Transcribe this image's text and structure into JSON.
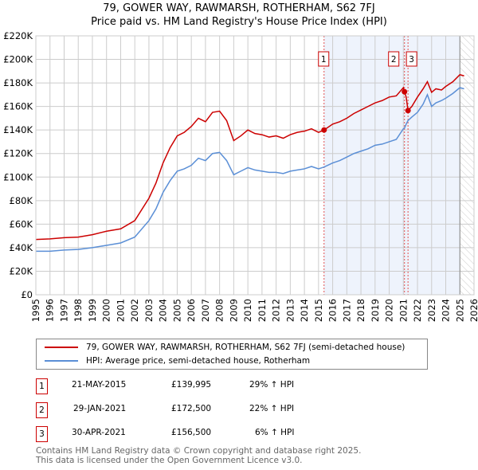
{
  "chart_data": {
    "type": "line",
    "title": "79, GOWER WAY, RAWMARSH, ROTHERHAM, S62 7FJ",
    "subtitle": "Price paid vs. HM Land Registry's House Price Index (HPI)",
    "xlim": [
      1995,
      2026
    ],
    "ylim": [
      0,
      220000
    ],
    "x_ticks": [
      "1995",
      "1996",
      "1997",
      "1998",
      "1999",
      "2000",
      "2001",
      "2002",
      "2003",
      "2004",
      "2005",
      "2006",
      "2007",
      "2008",
      "2009",
      "2010",
      "2011",
      "2012",
      "2013",
      "2014",
      "2015",
      "2016",
      "2017",
      "2018",
      "2019",
      "2020",
      "2021",
      "2022",
      "2023",
      "2024",
      "2025",
      "2026"
    ],
    "y_ticks": [
      {
        "v": 0,
        "label": "£0"
      },
      {
        "v": 20000,
        "label": "£20K"
      },
      {
        "v": 40000,
        "label": "£40K"
      },
      {
        "v": 60000,
        "label": "£60K"
      },
      {
        "v": 80000,
        "label": "£80K"
      },
      {
        "v": 100000,
        "label": "£100K"
      },
      {
        "v": 120000,
        "label": "£120K"
      },
      {
        "v": 140000,
        "label": "£140K"
      },
      {
        "v": 160000,
        "label": "£160K"
      },
      {
        "v": 180000,
        "label": "£180K"
      },
      {
        "v": 200000,
        "label": "£200K"
      },
      {
        "v": 220000,
        "label": "£220K"
      }
    ],
    "grid": true,
    "shaded_from": 2015.39,
    "hatched_from": 2025.0,
    "series": [
      {
        "name": "79, GOWER WAY, RAWMARSH, ROTHERHAM, S62 7FJ (semi-detached house)",
        "color": "#cc0000",
        "x": [
          1995,
          1996,
          1997,
          1998,
          1999,
          2000,
          2001,
          2002,
          2003,
          2003.5,
          2004,
          2004.5,
          2005,
          2005.5,
          2006,
          2006.5,
          2007,
          2007.5,
          2008,
          2008.5,
          2009,
          2009.5,
          2010,
          2010.5,
          2011,
          2011.5,
          2012,
          2012.5,
          2013,
          2013.5,
          2014,
          2014.5,
          2015,
          2015.39,
          2016,
          2016.5,
          2017,
          2017.5,
          2018,
          2018.5,
          2019,
          2019.5,
          2020,
          2020.5,
          2021.0,
          2021.08,
          2021.2,
          2021.33,
          2021.6,
          2022,
          2022.4,
          2022.7,
          2023,
          2023.3,
          2023.7,
          2024,
          2024.5,
          2025,
          2025.3
        ],
        "y": [
          47000,
          47500,
          48500,
          49000,
          51000,
          54000,
          56000,
          63000,
          82000,
          95000,
          112000,
          125000,
          135000,
          138000,
          143000,
          150000,
          147000,
          155000,
          156000,
          148000,
          131000,
          135000,
          140000,
          137000,
          136000,
          134000,
          135000,
          133000,
          136000,
          138000,
          139000,
          141000,
          138000,
          139995,
          145000,
          147000,
          150000,
          154000,
          157000,
          160000,
          163000,
          165000,
          168000,
          169000,
          176000,
          172500,
          168000,
          156500,
          160000,
          168000,
          175000,
          181000,
          172000,
          175000,
          174000,
          177000,
          181000,
          187000,
          186000
        ]
      },
      {
        "name": "HPI: Average price, semi-detached house, Rotherham",
        "color": "#5b8fd6",
        "x": [
          1995,
          1996,
          1997,
          1998,
          1999,
          2000,
          2001,
          2002,
          2003,
          2003.5,
          2004,
          2004.5,
          2005,
          2005.5,
          2006,
          2006.5,
          2007,
          2007.5,
          2008,
          2008.5,
          2009,
          2009.5,
          2010,
          2010.5,
          2011,
          2011.5,
          2012,
          2012.5,
          2013,
          2013.5,
          2014,
          2014.5,
          2015,
          2015.39,
          2016,
          2016.5,
          2017,
          2017.5,
          2018,
          2018.5,
          2019,
          2019.5,
          2020,
          2020.5,
          2021.0,
          2021.08,
          2021.2,
          2021.33,
          2021.6,
          2022,
          2022.4,
          2022.7,
          2023,
          2023.3,
          2023.7,
          2024,
          2024.5,
          2025,
          2025.3
        ],
        "y": [
          37000,
          37000,
          38000,
          38500,
          40000,
          42000,
          44000,
          49000,
          63000,
          73000,
          87000,
          97000,
          105000,
          107000,
          110000,
          116000,
          114000,
          120000,
          121000,
          114000,
          102000,
          105000,
          108000,
          106000,
          105000,
          104000,
          104000,
          103000,
          105000,
          106000,
          107000,
          109000,
          107000,
          108500,
          112000,
          114000,
          117000,
          120000,
          122000,
          124000,
          127000,
          128000,
          130000,
          132000,
          141000,
          141500,
          145000,
          148000,
          151000,
          155000,
          162000,
          170000,
          160000,
          163000,
          165000,
          167000,
          171000,
          176000,
          175000
        ]
      }
    ],
    "sales": [
      {
        "n": "1",
        "x": 2015.39,
        "y": 139995,
        "date": "21-MAY-2015",
        "price": "£139,995",
        "hpi": "29% ↑ HPI"
      },
      {
        "n": "2",
        "x": 2021.08,
        "y": 172500,
        "date": "29-JAN-2021",
        "price": "£172,500",
        "hpi": "22% ↑ HPI"
      },
      {
        "n": "3",
        "x": 2021.33,
        "y": 156500,
        "date": "30-APR-2021",
        "price": "£156,500",
        "hpi": "6% ↑ HPI"
      }
    ]
  },
  "footer": {
    "line1": "Contains HM Land Registry data © Crown copyright and database right 2025.",
    "line2": "This data is licensed under the Open Government Licence v3.0."
  }
}
